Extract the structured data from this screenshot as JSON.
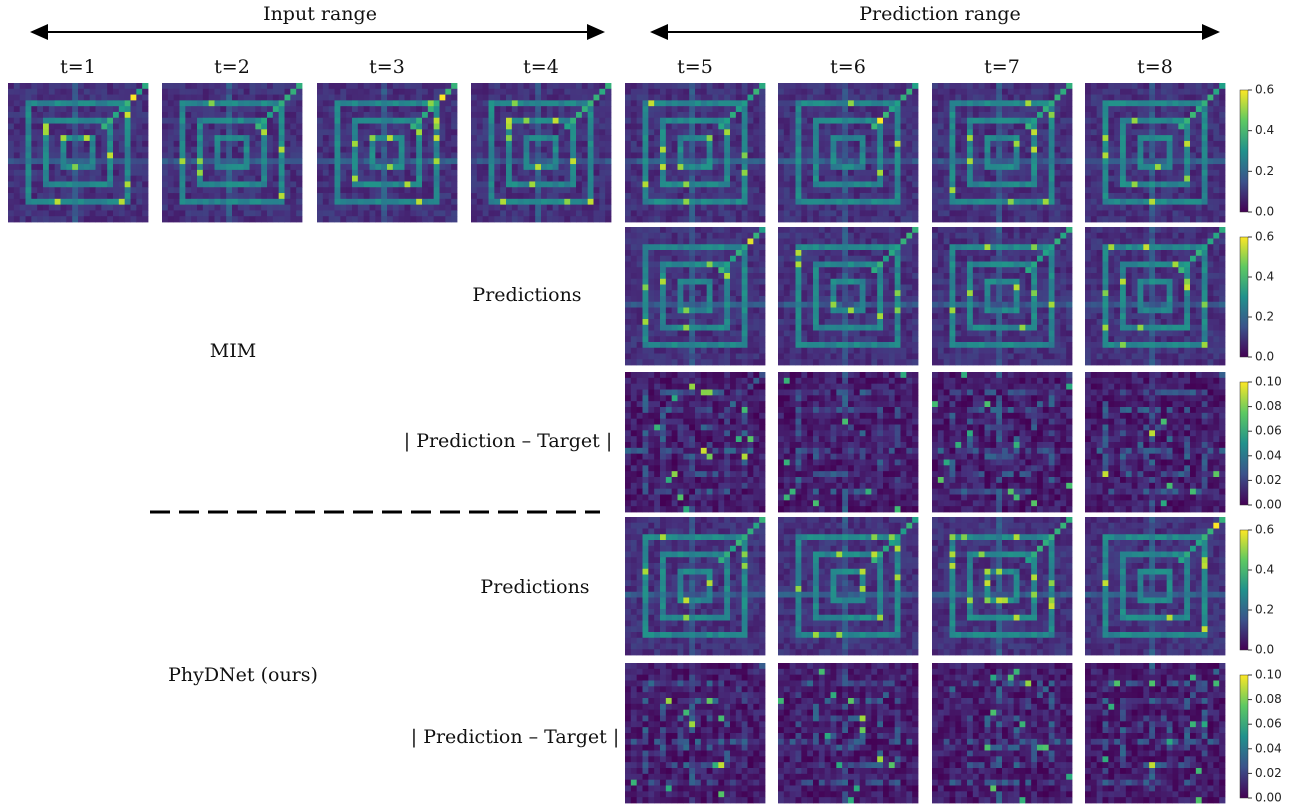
{
  "header": {
    "input_range": "Input range",
    "prediction_range": "Prediction range"
  },
  "time_steps": [
    "t=1",
    "t=2",
    "t=3",
    "t=4",
    "t=5",
    "t=6",
    "t=7",
    "t=8"
  ],
  "methods": [
    {
      "name": "MIM",
      "predictions_label": "Predictions",
      "error_label": "| Prediction – Target |"
    },
    {
      "name": "PhyDNet (ours)",
      "predictions_label": "Predictions",
      "error_label": "| Prediction – Target |"
    }
  ],
  "colorbars": [
    {
      "ticks": [
        "0.6",
        "0.4",
        "0.2",
        "0.0"
      ]
    },
    {
      "ticks": [
        "0.6",
        "0.4",
        "0.2",
        "0.0"
      ]
    },
    {
      "ticks": [
        "0.10",
        "0.08",
        "0.06",
        "0.04",
        "0.02",
        "0.00"
      ]
    },
    {
      "ticks": [
        "0.6",
        "0.4",
        "0.2",
        "0.0"
      ]
    },
    {
      "ticks": [
        "0.10",
        "0.08",
        "0.06",
        "0.04",
        "0.02",
        "0.00"
      ]
    }
  ]
}
